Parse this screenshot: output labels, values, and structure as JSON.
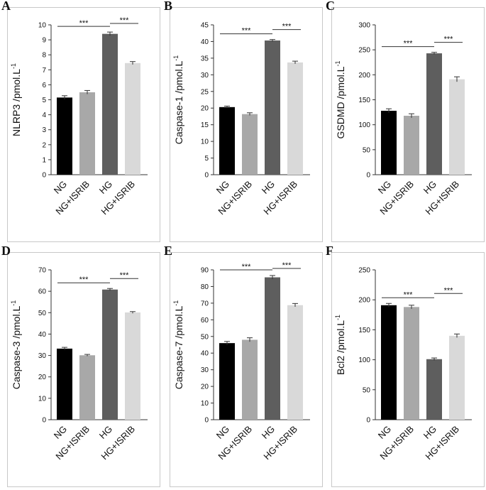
{
  "colors": {
    "NG": "#000000",
    "NG+ISRIB": "#a8a8a8",
    "HG": "#5e5e5e",
    "HG+ISRIB": "#d9d9d9"
  },
  "significance_label": "***",
  "chart_data": [
    {
      "letter": "A",
      "type": "bar",
      "ylabel": "NLRP3 /pmol.L",
      "ylabel_superscript": "-1",
      "categories": [
        "NG",
        "NG+ISRIB",
        "HG",
        "HG+ISRIB"
      ],
      "values": [
        5.15,
        5.5,
        9.4,
        7.45
      ],
      "errors": [
        0.12,
        0.12,
        0.12,
        0.1
      ],
      "ylim": [
        0,
        10
      ],
      "yticks": [
        0,
        1,
        2,
        3,
        4,
        5,
        6,
        7,
        8,
        9,
        10
      ],
      "significance": [
        {
          "from": 0,
          "to": 2,
          "label": "***"
        },
        {
          "from": 2,
          "to": 3,
          "label": "***"
        }
      ]
    },
    {
      "letter": "B",
      "type": "bar",
      "ylabel": "Caspase-1 /pmol.L",
      "ylabel_superscript": "-1",
      "categories": [
        "NG",
        "NG+ISRIB",
        "HG",
        "HG+ISRIB"
      ],
      "values": [
        20.3,
        18.2,
        40.3,
        33.7
      ],
      "errors": [
        0.3,
        0.4,
        0.3,
        0.4
      ],
      "ylim": [
        0,
        45
      ],
      "yticks": [
        0,
        5,
        10,
        15,
        20,
        25,
        30,
        35,
        40,
        45
      ],
      "significance": [
        {
          "from": 0,
          "to": 2,
          "label": "***"
        },
        {
          "from": 2,
          "to": 3,
          "label": "***"
        }
      ]
    },
    {
      "letter": "C",
      "type": "bar",
      "ylabel": "GSDMD /pmol.L",
      "ylabel_superscript": "-1",
      "categories": [
        "NG",
        "NG+ISRIB",
        "HG",
        "HG+ISRIB"
      ],
      "values": [
        128,
        118,
        243,
        191
      ],
      "errors": [
        4,
        4,
        2,
        5
      ],
      "ylim": [
        0,
        300
      ],
      "yticks": [
        0,
        50,
        100,
        150,
        200,
        250,
        300
      ],
      "significance": [
        {
          "from": 0,
          "to": 2,
          "label": "***"
        },
        {
          "from": 2,
          "to": 3,
          "label": "***"
        }
      ]
    },
    {
      "letter": "D",
      "type": "bar",
      "ylabel": "Caspase-3 /pmol.L",
      "ylabel_superscript": "-1",
      "categories": [
        "NG",
        "NG+ISRIB",
        "HG",
        "HG+ISRIB"
      ],
      "values": [
        33.2,
        30.1,
        60.8,
        50.1
      ],
      "errors": [
        0.6,
        0.4,
        0.5,
        0.4
      ],
      "ylim": [
        0,
        70
      ],
      "yticks": [
        0,
        10,
        20,
        30,
        40,
        50,
        60,
        70
      ],
      "significance": [
        {
          "from": 0,
          "to": 2,
          "label": "***"
        },
        {
          "from": 2,
          "to": 3,
          "label": "***"
        }
      ]
    },
    {
      "letter": "E",
      "type": "bar",
      "ylabel": "Caspase-7 /pmol.L",
      "ylabel_superscript": "-1",
      "categories": [
        "NG",
        "NG+ISRIB",
        "HG",
        "HG+ISRIB"
      ],
      "values": [
        46,
        48,
        85.5,
        68.8
      ],
      "errors": [
        1,
        1.2,
        1.1,
        1
      ],
      "ylim": [
        0,
        90
      ],
      "yticks": [
        0,
        10,
        20,
        30,
        40,
        50,
        60,
        70,
        80,
        90
      ],
      "significance": [
        {
          "from": 0,
          "to": 2,
          "label": "***"
        },
        {
          "from": 2,
          "to": 3,
          "label": "***"
        }
      ]
    },
    {
      "letter": "F",
      "type": "bar",
      "ylabel": "Bcl2 /pmol.L",
      "ylabel_superscript": "-1",
      "categories": [
        "NG",
        "NG+ISRIB",
        "HG",
        "HG+ISRIB"
      ],
      "values": [
        191,
        188,
        101,
        140
      ],
      "errors": [
        3,
        3,
        2,
        3
      ],
      "ylim": [
        0,
        250
      ],
      "yticks": [
        0,
        50,
        100,
        150,
        200,
        250
      ],
      "significance": [
        {
          "from": 0,
          "to": 2,
          "label": "***"
        },
        {
          "from": 2,
          "to": 3,
          "label": "***"
        }
      ]
    }
  ]
}
